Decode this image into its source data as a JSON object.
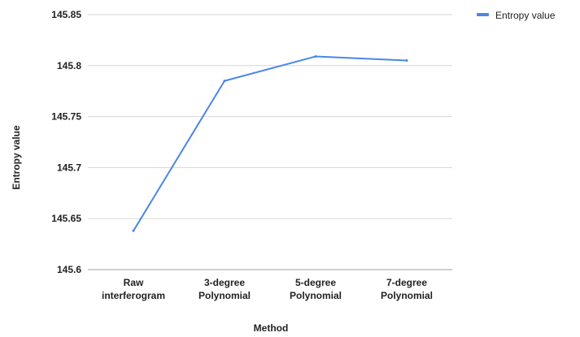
{
  "chart_data": {
    "type": "line",
    "title": "",
    "xlabel": "Method",
    "ylabel": "Entropy value",
    "categories": [
      [
        "Raw",
        "interferogram"
      ],
      [
        "3-degree",
        "Polynomial"
      ],
      [
        "5-degree",
        "Polynomial"
      ],
      [
        "7-degree",
        "Polynomial"
      ]
    ],
    "series": [
      {
        "name": "Entropy value",
        "color": "#4a86e8",
        "values": [
          145.638,
          145.785,
          145.809,
          145.805
        ]
      }
    ],
    "ylim": [
      145.6,
      145.85
    ],
    "yticks": [
      "145.6",
      "145.65",
      "145.7",
      "145.75",
      "145.8",
      "145.85"
    ],
    "grid": true,
    "legend": "top-right"
  }
}
